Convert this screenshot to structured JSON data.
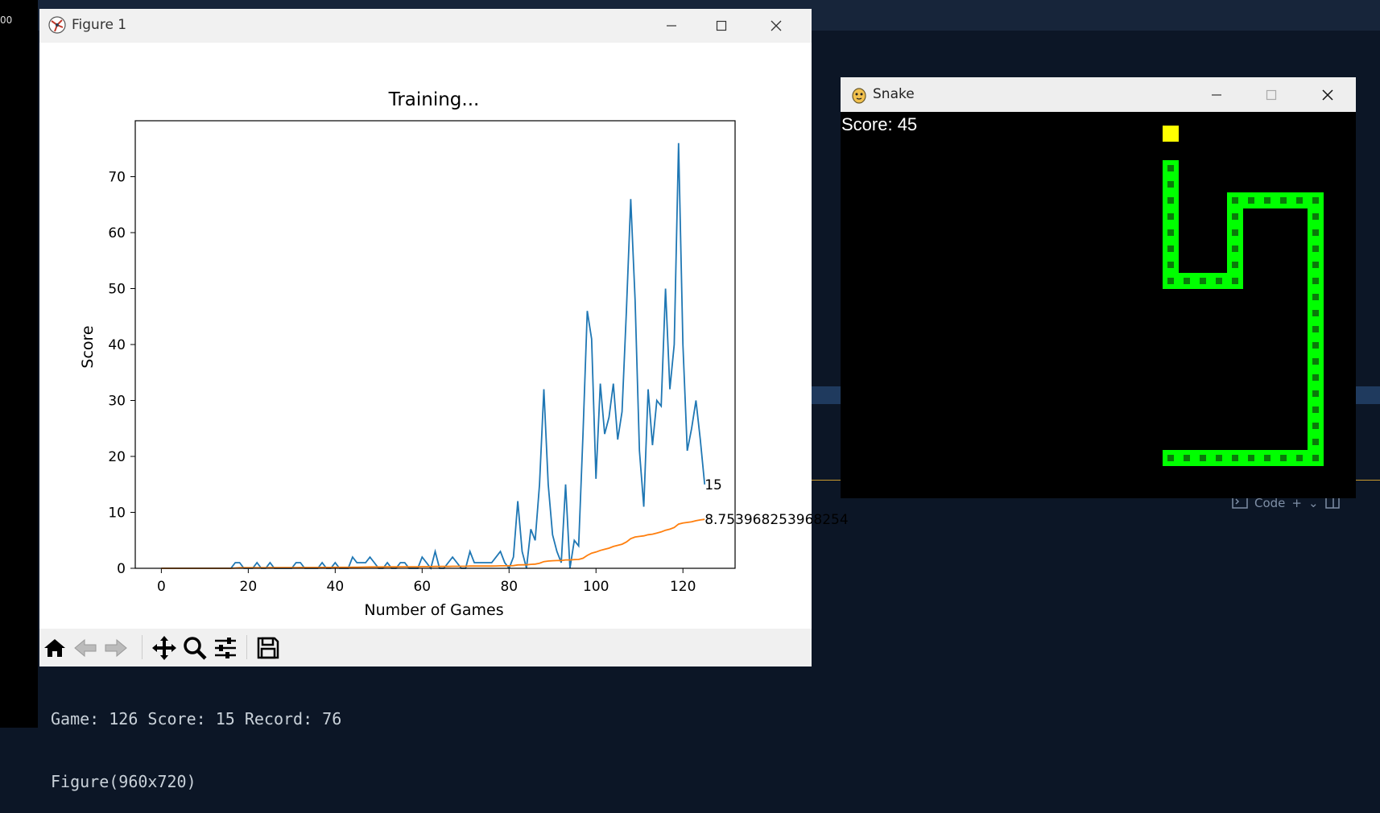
{
  "background": {
    "strip_label": "00"
  },
  "figure_window": {
    "title": "Figure 1",
    "toolbar": {
      "tools": [
        "home-icon",
        "back-arrow-icon",
        "forward-arrow-icon",
        "pan-icon",
        "zoom-icon",
        "configure-subplots-icon",
        "save-icon"
      ]
    }
  },
  "chart_data": {
    "type": "line",
    "title": "Training...",
    "xlabel": "Number of Games",
    "ylabel": "Score",
    "xlim": [
      -6,
      132
    ],
    "ylim": [
      0,
      80
    ],
    "xticks": [
      0,
      20,
      40,
      60,
      80,
      100,
      120
    ],
    "yticks": [
      0,
      10,
      20,
      30,
      40,
      50,
      60,
      70
    ],
    "grid": false,
    "series": [
      {
        "color": "#1f77b4",
        "values": [
          0,
          0,
          0,
          0,
          0,
          0,
          0,
          0,
          0,
          0,
          0,
          0,
          0,
          0,
          0,
          0,
          0,
          1,
          1,
          0,
          0,
          0,
          1,
          0,
          0,
          1,
          0,
          0,
          0,
          0,
          0,
          1,
          1,
          0,
          0,
          0,
          0,
          1,
          0,
          0,
          1,
          0,
          0,
          0,
          2,
          1,
          1,
          1,
          2,
          1,
          0,
          0,
          1,
          0,
          0,
          1,
          1,
          0,
          0,
          0,
          2,
          1,
          0,
          3,
          0,
          0,
          1,
          2,
          1,
          0,
          0,
          3,
          1,
          1,
          1,
          1,
          1,
          2,
          3,
          1,
          0,
          2,
          12,
          3,
          0,
          7,
          5,
          15,
          32,
          15,
          6,
          3,
          1,
          15,
          0,
          5,
          4,
          24,
          46,
          41,
          16,
          33,
          24,
          27,
          33,
          23,
          28,
          46,
          66,
          48,
          21,
          11,
          32,
          22,
          30,
          29,
          50,
          32,
          40,
          76,
          40,
          21,
          25,
          30,
          23,
          15
        ],
        "last_label": "15"
      },
      {
        "color": "#ff7f0e",
        "values": [
          0,
          0,
          0,
          0,
          0,
          0,
          0,
          0,
          0,
          0,
          0,
          0,
          0,
          0,
          0,
          0,
          0,
          0.06,
          0.1,
          0.1,
          0.1,
          0.1,
          0.1,
          0.1,
          0.1,
          0.12,
          0.12,
          0.12,
          0.12,
          0.12,
          0.12,
          0.12,
          0.15,
          0.15,
          0.15,
          0.15,
          0.15,
          0.16,
          0.16,
          0.16,
          0.17,
          0.17,
          0.17,
          0.17,
          0.2,
          0.2,
          0.22,
          0.23,
          0.25,
          0.25,
          0.25,
          0.25,
          0.26,
          0.26,
          0.26,
          0.27,
          0.27,
          0.27,
          0.27,
          0.27,
          0.3,
          0.3,
          0.3,
          0.33,
          0.33,
          0.33,
          0.33,
          0.36,
          0.36,
          0.36,
          0.36,
          0.4,
          0.4,
          0.4,
          0.4,
          0.4,
          0.4,
          0.42,
          0.45,
          0.45,
          0.45,
          0.47,
          0.6,
          0.62,
          0.62,
          0.7,
          0.75,
          0.9,
          1.2,
          1.3,
          1.35,
          1.38,
          1.38,
          1.5,
          1.5,
          1.55,
          1.58,
          1.8,
          2.3,
          2.7,
          2.9,
          3.2,
          3.4,
          3.6,
          3.9,
          4.1,
          4.3,
          4.7,
          5.3,
          5.6,
          5.7,
          5.8,
          6.0,
          6.1,
          6.3,
          6.5,
          6.8,
          7.0,
          7.3,
          7.9,
          8.1,
          8.2,
          8.3,
          8.5,
          8.65,
          8.75
        ],
        "last_label": "8.753968253968254"
      }
    ]
  },
  "snake_window": {
    "title": "Snake",
    "score_label": "Score: 45",
    "food": [
      20,
      0
    ],
    "snake_color": "#00ff00",
    "food_color": "#ffff00",
    "snake_cells": [
      [
        20,
        3
      ],
      [
        20,
        4
      ],
      [
        20,
        5
      ],
      [
        20,
        6
      ],
      [
        20,
        7
      ],
      [
        20,
        8
      ],
      [
        20,
        9
      ],
      [
        20,
        10
      ],
      [
        21,
        10
      ],
      [
        22,
        10
      ],
      [
        23,
        10
      ],
      [
        24,
        10
      ],
      [
        24,
        9
      ],
      [
        24,
        8
      ],
      [
        24,
        7
      ],
      [
        24,
        6
      ],
      [
        24,
        5
      ],
      [
        25,
        5
      ],
      [
        26,
        5
      ],
      [
        27,
        5
      ],
      [
        28,
        5
      ],
      [
        29,
        5
      ],
      [
        29,
        6
      ],
      [
        29,
        7
      ],
      [
        29,
        8
      ],
      [
        29,
        9
      ],
      [
        29,
        10
      ],
      [
        29,
        11
      ],
      [
        29,
        12
      ],
      [
        29,
        13
      ],
      [
        29,
        14
      ],
      [
        29,
        15
      ],
      [
        29,
        16
      ],
      [
        29,
        17
      ],
      [
        29,
        18
      ],
      [
        29,
        19
      ],
      [
        29,
        20
      ],
      [
        29,
        21
      ],
      [
        28,
        21
      ],
      [
        27,
        21
      ],
      [
        26,
        21
      ],
      [
        25,
        21
      ],
      [
        24,
        21
      ],
      [
        23,
        21
      ],
      [
        22,
        21
      ],
      [
        21,
        21
      ],
      [
        20,
        21
      ]
    ]
  },
  "ide": {
    "panel_label": "Code"
  },
  "terminal": {
    "lines": [
      "Game: 126 Score: 15 Record: 76",
      "Figure(960x720)"
    ]
  }
}
